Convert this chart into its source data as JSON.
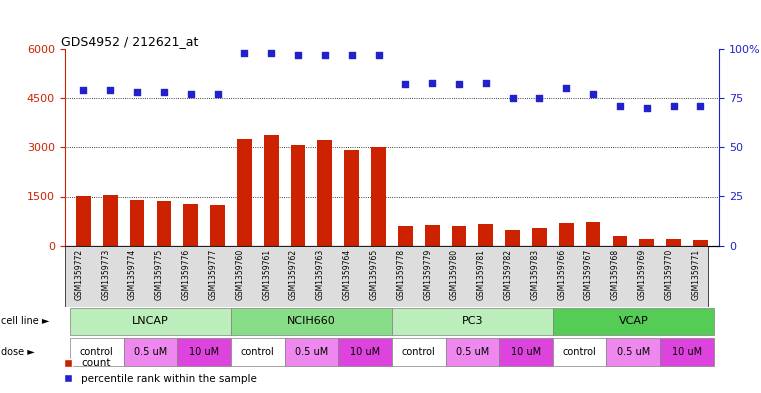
{
  "title": "GDS4952 / 212621_at",
  "samples": [
    "GSM1359772",
    "GSM1359773",
    "GSM1359774",
    "GSM1359775",
    "GSM1359776",
    "GSM1359777",
    "GSM1359760",
    "GSM1359761",
    "GSM1359762",
    "GSM1359763",
    "GSM1359764",
    "GSM1359765",
    "GSM1359778",
    "GSM1359779",
    "GSM1359780",
    "GSM1359781",
    "GSM1359782",
    "GSM1359783",
    "GSM1359766",
    "GSM1359767",
    "GSM1359768",
    "GSM1359769",
    "GSM1359770",
    "GSM1359771"
  ],
  "counts": [
    1520,
    1560,
    1380,
    1360,
    1260,
    1230,
    3250,
    3380,
    3080,
    3220,
    2920,
    3000,
    600,
    620,
    600,
    650,
    480,
    530,
    700,
    730,
    300,
    200,
    200,
    180
  ],
  "percentile_ranks": [
    79,
    79,
    78,
    78,
    77,
    77,
    98,
    98,
    97,
    97,
    97,
    97,
    82,
    83,
    82,
    83,
    75,
    75,
    80,
    77,
    71,
    70,
    71,
    71
  ],
  "cell_lines": [
    {
      "label": "LNCAP",
      "start": 0,
      "end": 6,
      "color": "#bbeebb"
    },
    {
      "label": "NCIH660",
      "start": 6,
      "end": 12,
      "color": "#88dd88"
    },
    {
      "label": "PC3",
      "start": 12,
      "end": 18,
      "color": "#bbeebb"
    },
    {
      "label": "VCAP",
      "start": 18,
      "end": 24,
      "color": "#55cc55"
    }
  ],
  "doses": [
    {
      "label": "control",
      "start": 0,
      "end": 2,
      "color": "#ffffff"
    },
    {
      "label": "0.5 uM",
      "start": 2,
      "end": 4,
      "color": "#ee88ee"
    },
    {
      "label": "10 uM",
      "start": 4,
      "end": 6,
      "color": "#dd44dd"
    },
    {
      "label": "control",
      "start": 6,
      "end": 8,
      "color": "#ffffff"
    },
    {
      "label": "0.5 uM",
      "start": 8,
      "end": 10,
      "color": "#ee88ee"
    },
    {
      "label": "10 uM",
      "start": 10,
      "end": 12,
      "color": "#dd44dd"
    },
    {
      "label": "control",
      "start": 12,
      "end": 14,
      "color": "#ffffff"
    },
    {
      "label": "0.5 uM",
      "start": 14,
      "end": 16,
      "color": "#ee88ee"
    },
    {
      "label": "10 uM",
      "start": 16,
      "end": 18,
      "color": "#dd44dd"
    },
    {
      "label": "control",
      "start": 18,
      "end": 20,
      "color": "#ffffff"
    },
    {
      "label": "0.5 uM",
      "start": 20,
      "end": 22,
      "color": "#ee88ee"
    },
    {
      "label": "10 uM",
      "start": 22,
      "end": 24,
      "color": "#dd44dd"
    }
  ],
  "bar_color": "#cc2200",
  "dot_color": "#2222cc",
  "left_ylim": [
    0,
    6000
  ],
  "right_ylim": [
    0,
    100
  ],
  "left_yticks": [
    0,
    1500,
    3000,
    4500,
    6000
  ],
  "right_yticks": [
    0,
    25,
    50,
    75,
    100
  ],
  "grid_values": [
    1500,
    3000,
    4500
  ],
  "background_color": "#ffffff"
}
